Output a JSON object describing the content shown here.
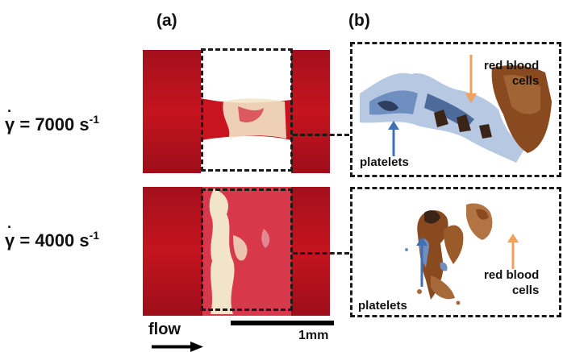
{
  "panels": {
    "a_label": "(a)",
    "b_label": "(b)"
  },
  "rows": [
    {
      "shear_prefix": "γ",
      "shear_value": " = 7000 s",
      "shear_exp": "-1",
      "histo_rbc_line1": "red blood",
      "histo_rbc_line2": "cells",
      "histo_platelets": "platelets"
    },
    {
      "shear_prefix": "γ",
      "shear_value": " = 4000 s",
      "shear_exp": "-1",
      "histo_rbc_line1": "red blood",
      "histo_rbc_line2": "cells",
      "histo_platelets": "platelets"
    }
  ],
  "scale": {
    "label": "1mm"
  },
  "flow": {
    "label": "flow"
  },
  "colors": {
    "blood_red": "#b3121f",
    "clot_white": "#f2e4c8",
    "platelet_arrow": "#3f6fb5",
    "rbc_arrow": "#f0a060",
    "stain_brown": "#8a4a20",
    "stain_blue": "#6f8fc0"
  }
}
